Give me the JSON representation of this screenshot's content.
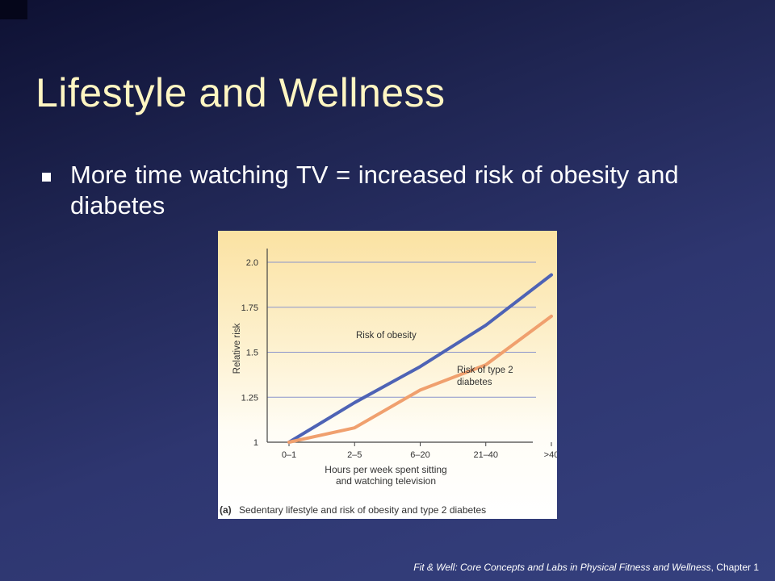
{
  "slide": {
    "title": "Lifestyle and Wellness",
    "bullet": "More time watching TV = increased risk of obesity and diabetes"
  },
  "footer": {
    "book_title": "Fit & Well: Core Concepts and Labs in Physical Fitness and Wellness",
    "chapter": ", Chapter 1"
  },
  "colors": {
    "obesity_line": "#4e63b5",
    "diabetes_line": "#f0a06e",
    "grid": "#8a94cc",
    "title": "#fff6c2"
  },
  "chart_data": {
    "type": "line",
    "categories": [
      "0–1",
      "2–5",
      "6–20",
      "21–40",
      ">40"
    ],
    "series": [
      {
        "name": "Risk of obesity",
        "values": [
          1.0,
          1.22,
          1.42,
          1.65,
          1.93
        ]
      },
      {
        "name": "Risk of type 2 diabetes",
        "values": [
          1.0,
          1.08,
          1.29,
          1.43,
          1.7
        ]
      }
    ],
    "series_label_lines": [
      [
        "Risk of obesity"
      ],
      [
        "Risk of type 2",
        "diabetes"
      ]
    ],
    "yticks": [
      1,
      1.25,
      1.5,
      1.75,
      2.0
    ],
    "ytick_labels": [
      "1",
      "1.25",
      "1.5",
      "1.75",
      "2.0"
    ],
    "ylim": [
      1,
      2.0
    ],
    "ylabel": "Relative risk",
    "xlabel_lines": [
      "Hours per week spent sitting",
      "and watching television"
    ],
    "caption_tag": "(a)",
    "caption": "Sedentary lifestyle and risk of obesity and type 2 diabetes",
    "grid": true
  }
}
